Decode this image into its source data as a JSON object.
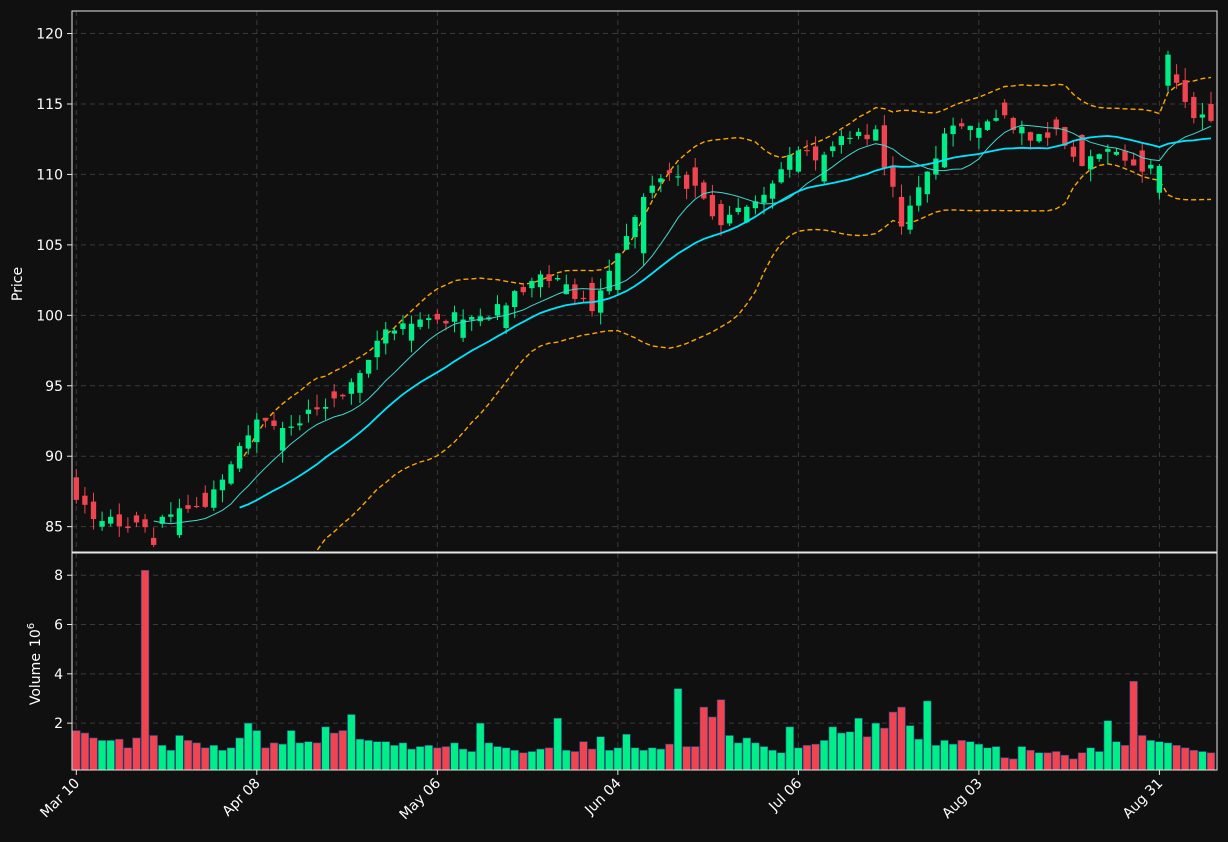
{
  "colors": {
    "background": "#101010",
    "panel_border": "#e6e6e6",
    "grid": "#3a3a3a",
    "text": "#ffffff",
    "up": "#00ee88",
    "down": "#f04450",
    "ma_fast": "#40d8d0",
    "ma_slow": "#00e5ff",
    "bollinger": "#ffa500"
  },
  "chart_data": [
    {
      "type": "candlestick",
      "panel": "price",
      "ylabel": "Price",
      "ylim": [
        83.2,
        121.6
      ],
      "yticks": [
        85,
        90,
        95,
        100,
        105,
        110,
        115,
        120
      ],
      "grid": true,
      "x_tick_labels": [
        "Mar 10",
        "Apr 08",
        "May 06",
        "Jun 04",
        "Jul 06",
        "Aug 03",
        "Aug 31"
      ],
      "x_tick_index": [
        0,
        21,
        42,
        63,
        84,
        105,
        126
      ],
      "n_sessions": 133,
      "ohlc_anchors": [
        [
          0,
          88.5,
          86.9
        ],
        [
          3,
          85.0,
          85.4
        ],
        [
          7,
          85.8,
          85.3
        ],
        [
          9,
          84.2,
          83.7
        ],
        [
          10,
          85.2,
          85.7
        ],
        [
          12,
          84.4,
          86.3
        ],
        [
          15,
          87.4,
          86.4
        ],
        [
          21,
          91.0,
          92.6
        ],
        [
          24,
          90.4,
          92.0
        ],
        [
          27,
          93.0,
          93.3
        ],
        [
          30,
          94.6,
          94.1
        ],
        [
          33,
          94.5,
          95.9
        ],
        [
          36,
          98.0,
          99.0
        ],
        [
          39,
          98.2,
          99.4
        ],
        [
          42,
          100.1,
          99.7
        ],
        [
          45,
          98.4,
          99.7
        ],
        [
          50,
          99.1,
          100.7
        ],
        [
          54,
          102.0,
          102.9
        ],
        [
          57,
          101.5,
          102.2
        ],
        [
          60,
          102.3,
          100.3
        ],
        [
          63,
          101.8,
          104.4
        ],
        [
          66,
          104.4,
          108.4
        ],
        [
          69,
          110.3,
          110.1
        ],
        [
          72,
          110.5,
          109.2
        ],
        [
          75,
          107.9,
          106.4
        ],
        [
          78,
          106.6,
          107.7
        ],
        [
          84,
          110.2,
          111.7
        ],
        [
          87,
          109.5,
          111.4
        ],
        [
          90,
          112.6,
          112.6
        ],
        [
          93,
          112.4,
          113.2
        ],
        [
          96,
          108.4,
          106.3
        ],
        [
          99,
          108.6,
          110.2
        ],
        [
          101,
          110.5,
          112.9
        ],
        [
          105,
          112.6,
          113.3
        ],
        [
          108,
          115.1,
          114.2
        ],
        [
          111,
          113.0,
          112.4
        ],
        [
          114,
          113.9,
          113.2
        ],
        [
          117,
          112.8,
          110.6
        ],
        [
          121,
          111.4,
          111.6
        ],
        [
          124,
          111.7,
          110.2
        ],
        [
          126,
          108.7,
          110.6
        ],
        [
          127,
          116.3,
          118.5
        ],
        [
          128,
          117.1,
          116.5
        ],
        [
          130,
          115.5,
          114.0
        ],
        [
          132,
          115.0,
          113.8
        ]
      ],
      "series": [
        {
          "kind": "line",
          "width": 1,
          "window": 10,
          "style": "solid"
        },
        {
          "kind": "line",
          "width": 1.6,
          "window": 20,
          "style": "solid"
        },
        {
          "kind": "band",
          "window": 20,
          "k": 2,
          "style": "dashed"
        }
      ]
    },
    {
      "type": "bar",
      "panel": "volume",
      "ylabel": "Volume",
      "yexp": "6",
      "ylim": [
        0.1,
        8.9
      ],
      "yticks": [
        2,
        4,
        6,
        8
      ],
      "yticklabels": [
        "2",
        "4",
        "6",
        "8"
      ],
      "grid": true,
      "volume_millions": [
        1.7,
        1.6,
        1.4,
        1.3,
        1.3,
        1.35,
        1.0,
        1.4,
        8.2,
        1.5,
        1.1,
        0.9,
        1.5,
        1.3,
        1.2,
        1.0,
        1.1,
        0.9,
        1.0,
        1.4,
        2.0,
        1.7,
        1.0,
        1.2,
        1.15,
        1.7,
        1.2,
        1.25,
        1.2,
        1.85,
        1.6,
        1.7,
        2.35,
        1.35,
        1.3,
        1.25,
        1.25,
        1.1,
        1.2,
        0.95,
        1.05,
        1.1,
        1.0,
        1.05,
        1.2,
        0.95,
        0.85,
        2.0,
        1.2,
        1.05,
        1.0,
        0.9,
        0.8,
        0.85,
        0.95,
        1.0,
        2.2,
        0.9,
        0.85,
        1.25,
        0.95,
        1.45,
        0.9,
        1.0,
        1.55,
        1.0,
        0.9,
        1.0,
        0.95,
        1.15,
        3.4,
        1.05,
        1.05,
        2.65,
        2.25,
        2.95,
        1.5,
        1.2,
        1.4,
        1.2,
        1.05,
        0.9,
        0.8,
        1.85,
        1.0,
        1.1,
        1.15,
        1.3,
        1.85,
        1.6,
        1.65,
        2.2,
        1.45,
        2.0,
        1.8,
        2.45,
        2.65,
        1.9,
        1.35,
        2.9,
        1.1,
        1.3,
        1.15,
        1.3,
        1.25,
        1.15,
        1.0,
        1.05,
        0.6,
        0.55,
        1.05,
        0.9,
        0.8,
        0.8,
        0.85,
        0.7,
        0.55,
        0.8,
        1.0,
        0.85,
        2.1,
        1.25,
        1.1,
        3.7,
        1.5,
        1.3,
        1.25,
        1.2,
        1.1,
        1.0,
        0.9,
        0.85,
        0.8
      ]
    }
  ]
}
